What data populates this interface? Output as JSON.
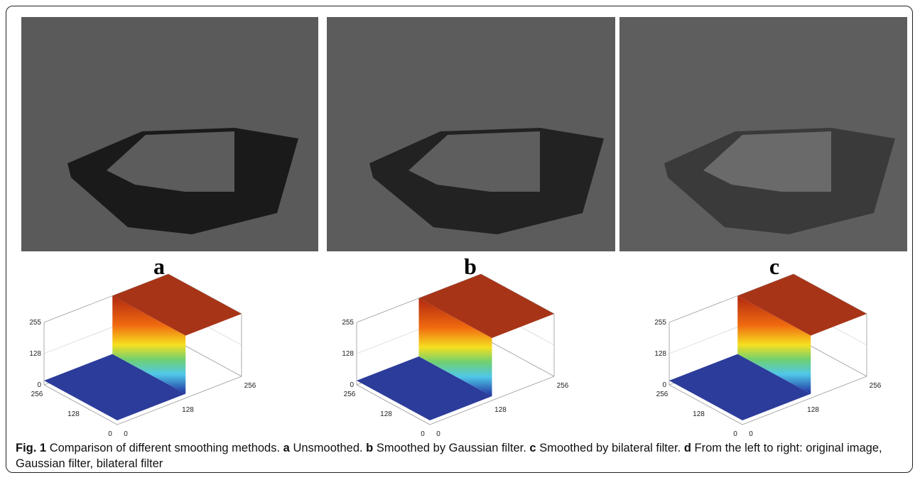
{
  "panels": [
    {
      "label": "a"
    },
    {
      "label": "b"
    },
    {
      "label": "c"
    }
  ],
  "plots": [
    {
      "z_ticks": [
        "255",
        "128",
        "0"
      ],
      "y_ticks": [
        "256",
        "128",
        "0"
      ],
      "x_ticks": [
        "0",
        "128",
        "256"
      ]
    },
    {
      "z_ticks": [
        "255",
        "128",
        "0"
      ],
      "y_ticks": [
        "256",
        "128",
        "0"
      ],
      "x_ticks": [
        "0",
        "128",
        "256"
      ]
    },
    {
      "z_ticks": [
        "255",
        "128",
        "0"
      ],
      "y_ticks": [
        "256",
        "128",
        "0"
      ],
      "x_ticks": [
        "0",
        "128",
        "256"
      ]
    }
  ],
  "caption": {
    "label": "Fig. 1",
    "text": "Comparison of different smoothing methods.",
    "items": [
      {
        "key": "a",
        "text": "Unsmoothed."
      },
      {
        "key": "b",
        "text": "Smoothed by Gaussian filter."
      },
      {
        "key": "c",
        "text": "Smoothed by bilateral filter."
      },
      {
        "key": "d",
        "text": "From the left to right: original image, Gaussian filter, bilateral filter"
      }
    ]
  }
}
